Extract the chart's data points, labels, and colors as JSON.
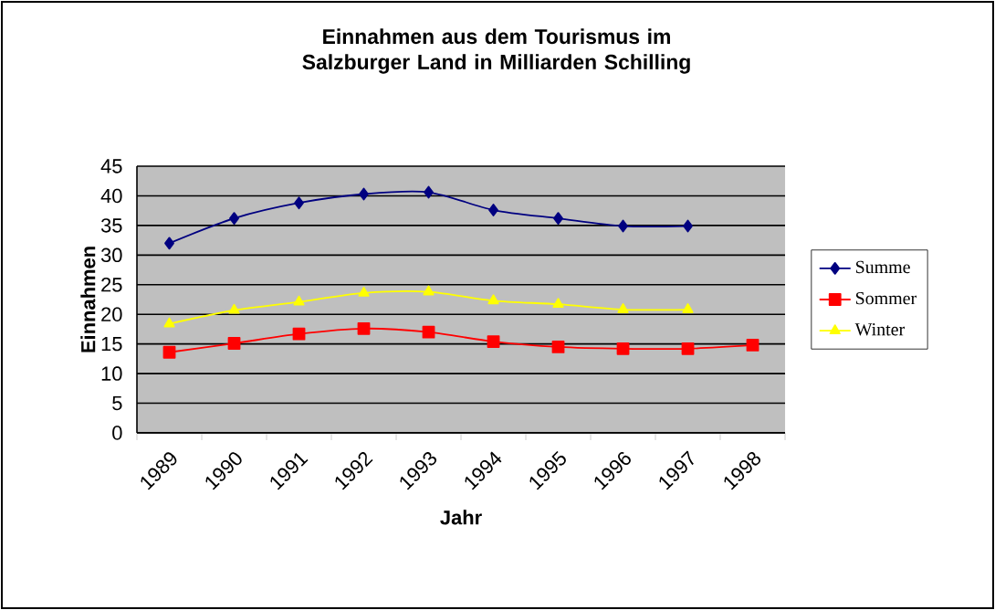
{
  "chart_data": {
    "type": "line",
    "title": "Einnahmen aus dem Tourismus im Salzburger Land in Milliarden Schilling",
    "xlabel": "Jahr",
    "ylabel": "Einnahmen",
    "categories": [
      "1989",
      "1990",
      "1991",
      "1992",
      "1993",
      "1994",
      "1995",
      "1996",
      "1997",
      "1998"
    ],
    "series": [
      {
        "name": "Summe",
        "color": "#000080",
        "marker": "diamond",
        "values": [
          32.0,
          36.2,
          38.8,
          40.3,
          40.6,
          37.6,
          36.2,
          34.9,
          34.9,
          null
        ]
      },
      {
        "name": "Sommer",
        "color": "#ff0000",
        "marker": "square",
        "values": [
          13.6,
          15.1,
          16.7,
          17.6,
          17.0,
          15.4,
          14.5,
          14.2,
          14.2,
          14.8
        ]
      },
      {
        "name": "Winter",
        "color": "#ffff00",
        "marker": "triangle",
        "values": [
          18.4,
          20.7,
          22.1,
          23.6,
          23.8,
          22.3,
          21.7,
          20.8,
          20.8,
          null
        ]
      }
    ],
    "ylim": [
      0,
      45
    ],
    "yticks": [
      0,
      5,
      10,
      15,
      20,
      25,
      30,
      35,
      40,
      45
    ],
    "grid": "y",
    "legend": "right",
    "line_style": "solid"
  }
}
